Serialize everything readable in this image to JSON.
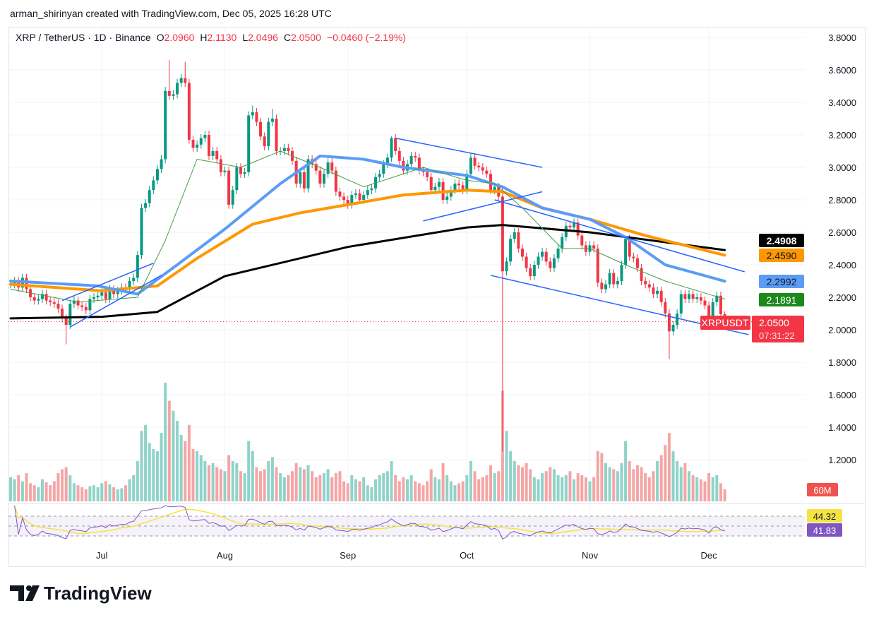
{
  "header": {
    "credit": "arman_shirinyan created with TradingView.com, Dec 05, 2025 16:28 UTC"
  },
  "legend": {
    "symbol": "XRP / TetherUS · 1D · Binance",
    "o_label": "O",
    "o": "2.0960",
    "h_label": "H",
    "h": "2.1130",
    "l_label": "L",
    "l": "2.0496",
    "c_label": "C",
    "c": "2.0500",
    "change": "−0.0460 (−2.19%)"
  },
  "tags": {
    "ma_black": "2.4908",
    "ma_orange": "2.4590",
    "ma_blue": "2.2992",
    "ma_green": "2.1891",
    "symbol": "XRPUSDT",
    "last_price": "2.0500",
    "countdown": "07:31:22",
    "volume": "60M",
    "rsi_ma": "44.32",
    "rsi": "41.83"
  },
  "logo": {
    "text": "TradingView"
  },
  "colors": {
    "up": "#089981",
    "down": "#f23645",
    "ma_black": "#000000",
    "ma_orange": "#ff9800",
    "ma_blue": "#5b9cf6",
    "ma_green": "#43a047",
    "rsi": "#7e57c2",
    "rsi_ma": "#f5e342",
    "trendline": "#2962ff"
  },
  "chart_data": {
    "type": "candlestick",
    "start_date": "2025-06-08",
    "y_ticks": [
      "3.8000",
      "3.6000",
      "3.4000",
      "3.2000",
      "3.0000",
      "2.8000",
      "2.6000",
      "2.4000",
      "2.2000",
      "2.0000",
      "1.8000",
      "1.6000",
      "1.4000",
      "1.2000"
    ],
    "ylim": [
      1.0,
      3.8
    ],
    "x_ticks": [
      {
        "label": "Jul",
        "date": "2025-07-01"
      },
      {
        "label": "Aug",
        "date": "2025-08-01"
      },
      {
        "label": "Sep",
        "date": "2025-09-01"
      },
      {
        "label": "Oct",
        "date": "2025-10-01"
      },
      {
        "label": "Nov",
        "date": "2025-11-01"
      },
      {
        "label": "Dec",
        "date": "2025-12-01"
      }
    ],
    "grid": true,
    "close": [
      2.28,
      2.3,
      2.26,
      2.32,
      2.25,
      2.2,
      2.18,
      2.19,
      2.22,
      2.18,
      2.17,
      2.16,
      2.13,
      2.07,
      2.03,
      2.16,
      2.18,
      2.15,
      2.14,
      2.12,
      2.19,
      2.2,
      2.21,
      2.23,
      2.19,
      2.25,
      2.22,
      2.24,
      2.26,
      2.25,
      2.3,
      2.32,
      2.46,
      2.75,
      2.78,
      2.86,
      2.92,
      2.99,
      3.05,
      3.47,
      3.44,
      3.45,
      3.52,
      3.55,
      3.52,
      3.17,
      3.12,
      3.14,
      3.18,
      3.2,
      3.07,
      3.1,
      3.05,
      2.97,
      2.98,
      2.77,
      2.86,
      3.0,
      2.96,
      2.97,
      3.32,
      3.34,
      3.28,
      3.19,
      3.13,
      3.28,
      3.3,
      3.1,
      3.1,
      3.12,
      3.1,
      3.04,
      2.9,
      2.97,
      2.87,
      3.05,
      3.02,
      2.98,
      2.9,
      2.96,
      3.03,
      2.98,
      2.85,
      2.82,
      2.8,
      2.77,
      2.83,
      2.84,
      2.8,
      2.83,
      2.86,
      2.87,
      2.94,
      2.96,
      3.02,
      3.06,
      3.18,
      3.1,
      3.04,
      2.98,
      3.02,
      3.07,
      3.06,
      2.98,
      2.97,
      2.94,
      2.86,
      2.88,
      2.91,
      2.8,
      2.82,
      2.86,
      2.9,
      2.89,
      2.86,
      2.96,
      3.06,
      3.01,
      3.0,
      2.98,
      2.96,
      2.86,
      2.88,
      2.82,
      2.36,
      2.42,
      2.56,
      2.6,
      2.5,
      2.45,
      2.38,
      2.33,
      2.4,
      2.45,
      2.48,
      2.42,
      2.38,
      2.44,
      2.5,
      2.57,
      2.64,
      2.63,
      2.66,
      2.58,
      2.52,
      2.48,
      2.52,
      2.5,
      2.29,
      2.25,
      2.28,
      2.35,
      2.28,
      2.3,
      2.4,
      2.56,
      2.45,
      2.44,
      2.38,
      2.3,
      2.28,
      2.26,
      2.22,
      2.24,
      2.17,
      2.1,
      1.99,
      2.03,
      2.1,
      2.22,
      2.19,
      2.22,
      2.19,
      2.2,
      2.18,
      2.15,
      2.03,
      2.17,
      2.21,
      2.096,
      2.05
    ],
    "last_candle": {
      "open": 2.096,
      "high": 2.113,
      "low": 2.0496,
      "close": 2.05
    },
    "notable_extremes": [
      {
        "date": "2025-06-22",
        "low": 1.91
      },
      {
        "date": "2025-07-18",
        "high": 3.66
      },
      {
        "date": "2025-07-22",
        "high": 3.65
      },
      {
        "date": "2025-08-08",
        "high": 3.38
      },
      {
        "date": "2025-08-13",
        "high": 3.36
      },
      {
        "date": "2025-09-12",
        "high": 3.19
      },
      {
        "date": "2025-10-10",
        "high": 2.88,
        "low": 1.25
      },
      {
        "date": "2025-11-21",
        "low": 1.82
      },
      {
        "date": "2025-11-10",
        "high": 2.58
      }
    ],
    "volume_millions": [
      120,
      110,
      130,
      100,
      140,
      90,
      80,
      70,
      110,
      95,
      80,
      100,
      140,
      160,
      170,
      130,
      90,
      80,
      70,
      60,
      75,
      80,
      70,
      90,
      100,
      85,
      70,
      60,
      65,
      80,
      110,
      130,
      200,
      350,
      380,
      290,
      260,
      250,
      340,
      590,
      500,
      450,
      400,
      330,
      300,
      380,
      260,
      250,
      230,
      200,
      180,
      190,
      170,
      160,
      150,
      230,
      200,
      190,
      150,
      140,
      300,
      250,
      170,
      150,
      160,
      200,
      220,
      170,
      140,
      120,
      130,
      150,
      190,
      170,
      160,
      180,
      150,
      120,
      130,
      140,
      160,
      120,
      140,
      150,
      100,
      90,
      130,
      110,
      100,
      120,
      80,
      70,
      110,
      130,
      140,
      150,
      200,
      130,
      100,
      120,
      110,
      130,
      100,
      90,
      80,
      100,
      160,
      120,
      110,
      190,
      130,
      100,
      80,
      90,
      100,
      130,
      200,
      150,
      110,
      120,
      130,
      180,
      140,
      150,
      550,
      350,
      250,
      200,
      180,
      170,
      190,
      160,
      120,
      110,
      140,
      150,
      170,
      160,
      130,
      120,
      130,
      150,
      110,
      140,
      130,
      120,
      100,
      120,
      250,
      240,
      190,
      170,
      160,
      150,
      190,
      300,
      200,
      160,
      180,
      170,
      140,
      120,
      150,
      200,
      230,
      280,
      340,
      250,
      200,
      170,
      190,
      150,
      130,
      120,
      110,
      100,
      140,
      120,
      130,
      90,
      60
    ],
    "moving_averages": [
      {
        "color_key": "ma_black",
        "last": 2.4908,
        "points": [
          [
            "2025-06-08",
            2.07
          ],
          [
            "2025-07-01",
            2.08
          ],
          [
            "2025-07-15",
            2.11
          ],
          [
            "2025-08-01",
            2.33
          ],
          [
            "2025-09-01",
            2.51
          ],
          [
            "2025-10-01",
            2.63
          ],
          [
            "2025-10-10",
            2.645
          ],
          [
            "2025-11-01",
            2.6
          ],
          [
            "2025-12-05",
            2.4908
          ]
        ]
      },
      {
        "color_key": "ma_orange",
        "last": 2.459,
        "points": [
          [
            "2025-06-08",
            2.28
          ],
          [
            "2025-07-01",
            2.24
          ],
          [
            "2025-07-15",
            2.27
          ],
          [
            "2025-07-25",
            2.44
          ],
          [
            "2025-08-08",
            2.65
          ],
          [
            "2025-08-20",
            2.72
          ],
          [
            "2025-09-01",
            2.77
          ],
          [
            "2025-09-15",
            2.83
          ],
          [
            "2025-10-01",
            2.86
          ],
          [
            "2025-10-10",
            2.85
          ],
          [
            "2025-10-20",
            2.75
          ],
          [
            "2025-11-01",
            2.68
          ],
          [
            "2025-11-15",
            2.58
          ],
          [
            "2025-12-05",
            2.459
          ]
        ]
      },
      {
        "color_key": "ma_blue",
        "last": 2.2992,
        "points": [
          [
            "2025-06-08",
            2.3
          ],
          [
            "2025-06-30",
            2.27
          ],
          [
            "2025-07-10",
            2.22
          ],
          [
            "2025-07-20",
            2.4
          ],
          [
            "2025-08-01",
            2.62
          ],
          [
            "2025-08-15",
            2.9
          ],
          [
            "2025-08-25",
            3.07
          ],
          [
            "2025-09-05",
            3.05
          ],
          [
            "2025-09-15",
            3.0
          ],
          [
            "2025-10-01",
            2.95
          ],
          [
            "2025-10-10",
            2.88
          ],
          [
            "2025-10-20",
            2.75
          ],
          [
            "2025-11-01",
            2.68
          ],
          [
            "2025-11-10",
            2.57
          ],
          [
            "2025-11-20",
            2.4
          ],
          [
            "2025-12-05",
            2.2992
          ]
        ]
      },
      {
        "color_key": "ma_green",
        "last": 2.1891,
        "points": [
          [
            "2025-06-08",
            2.25
          ],
          [
            "2025-06-25",
            2.17
          ],
          [
            "2025-07-10",
            2.2
          ],
          [
            "2025-07-17",
            2.55
          ],
          [
            "2025-07-25",
            3.05
          ],
          [
            "2025-08-05",
            3.0
          ],
          [
            "2025-08-15",
            3.1
          ],
          [
            "2025-08-25",
            3.0
          ],
          [
            "2025-09-05",
            2.88
          ],
          [
            "2025-09-20",
            3.0
          ],
          [
            "2025-10-01",
            2.92
          ],
          [
            "2025-10-08",
            2.9
          ],
          [
            "2025-10-15",
            2.75
          ],
          [
            "2025-10-25",
            2.5
          ],
          [
            "2025-11-01",
            2.5
          ],
          [
            "2025-11-10",
            2.4
          ],
          [
            "2025-11-20",
            2.3
          ],
          [
            "2025-12-05",
            2.1891
          ]
        ]
      }
    ],
    "trendlines": [
      [
        [
          "2025-06-23",
          2.017
        ],
        [
          "2025-07-16",
          2.335
        ]
      ],
      [
        [
          "2025-06-21",
          2.18
        ],
        [
          "2025-07-14",
          2.41
        ]
      ],
      [
        [
          "2025-09-13",
          3.18
        ],
        [
          "2025-10-20",
          3.0
        ]
      ],
      [
        [
          "2025-09-20",
          2.67
        ],
        [
          "2025-10-20",
          2.85
        ]
      ],
      [
        [
          "2025-10-08",
          2.8
        ],
        [
          "2025-12-10",
          2.357
        ]
      ],
      [
        [
          "2025-10-07",
          2.335
        ],
        [
          "2025-12-11",
          1.97
        ]
      ]
    ],
    "rsi": {
      "last": 41.83,
      "ma_last": 44.32,
      "levels": [
        70,
        50,
        30
      ]
    }
  }
}
